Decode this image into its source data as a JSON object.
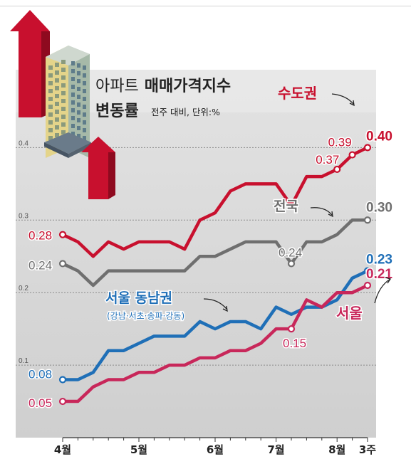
{
  "title": {
    "line1_prefix": "아파트",
    "line1_bold": "매매가격지수",
    "line2_bold": "변동률",
    "note": "전주 대비, 단위:%"
  },
  "colors": {
    "capital": "#c8102e",
    "national": "#6f6f6f",
    "gangnam": "#1f6fb7",
    "seoul": "#c8275a",
    "shade": "#d9d9d9",
    "grid": "#8c8c8c"
  },
  "icon": "apartment-building-with-rising-red-arrows",
  "chart_data": {
    "type": "line",
    "title": "아파트 매매가격지수 변동률",
    "subtitle": "전주 대비, 단위:%",
    "ylim": [
      0.0,
      0.42
    ],
    "y_ticks": [
      {
        "value": 0.1,
        "label": "0.1"
      },
      {
        "value": 0.2,
        "label": "0.2"
      },
      {
        "value": 0.3,
        "label": "0.3"
      },
      {
        "value": 0.4,
        "label": "0.4"
      }
    ],
    "x_labels": [
      "4월",
      "5월",
      "6월",
      "7월",
      "8월",
      "3주"
    ],
    "x_label_weeks": [
      0,
      5,
      10,
      14,
      18,
      20
    ],
    "grid": true,
    "series": [
      {
        "name": "수도권",
        "color": "#c8102e",
        "values": [
          0.28,
          0.27,
          0.25,
          0.27,
          0.26,
          0.27,
          0.27,
          0.27,
          0.26,
          0.3,
          0.31,
          0.34,
          0.35,
          0.35,
          0.35,
          0.32,
          0.36,
          0.36,
          0.37,
          0.39,
          0.4
        ],
        "labels": [
          {
            "week": 0,
            "text": "0.28"
          },
          {
            "week": 18,
            "text": "0.37"
          },
          {
            "week": 19,
            "text": "0.39"
          },
          {
            "week": 20,
            "text": "0.40"
          }
        ]
      },
      {
        "name": "전국",
        "color": "#6f6f6f",
        "values": [
          0.24,
          0.23,
          0.21,
          0.23,
          0.23,
          0.23,
          0.23,
          0.23,
          0.23,
          0.25,
          0.25,
          0.26,
          0.27,
          0.27,
          0.27,
          0.24,
          0.27,
          0.27,
          0.28,
          0.3,
          0.3
        ],
        "labels": [
          {
            "week": 0,
            "text": "0.24"
          },
          {
            "week": 15,
            "text": "0.24"
          },
          {
            "week": 20,
            "text": "0.30"
          }
        ]
      },
      {
        "name": "서울 동남권",
        "subname": "(강남·서초·송파·강동)",
        "color": "#1f6fb7",
        "values": [
          0.08,
          0.08,
          0.09,
          0.12,
          0.12,
          0.13,
          0.14,
          0.14,
          0.14,
          0.16,
          0.15,
          0.16,
          0.16,
          0.15,
          0.18,
          0.17,
          0.18,
          0.18,
          0.19,
          0.22,
          0.23
        ],
        "labels": [
          {
            "week": 0,
            "text": "0.08"
          },
          {
            "week": 20,
            "text": "0.23"
          }
        ]
      },
      {
        "name": "서울",
        "color": "#c8275a",
        "values": [
          0.05,
          0.05,
          0.07,
          0.08,
          0.08,
          0.09,
          0.09,
          0.1,
          0.1,
          0.11,
          0.11,
          0.12,
          0.12,
          0.13,
          0.15,
          0.15,
          0.19,
          0.18,
          0.2,
          0.2,
          0.21
        ],
        "labels": [
          {
            "week": 0,
            "text": "0.05"
          },
          {
            "week": 15,
            "text": "0.15"
          },
          {
            "week": 20,
            "text": "0.21"
          }
        ]
      }
    ]
  }
}
